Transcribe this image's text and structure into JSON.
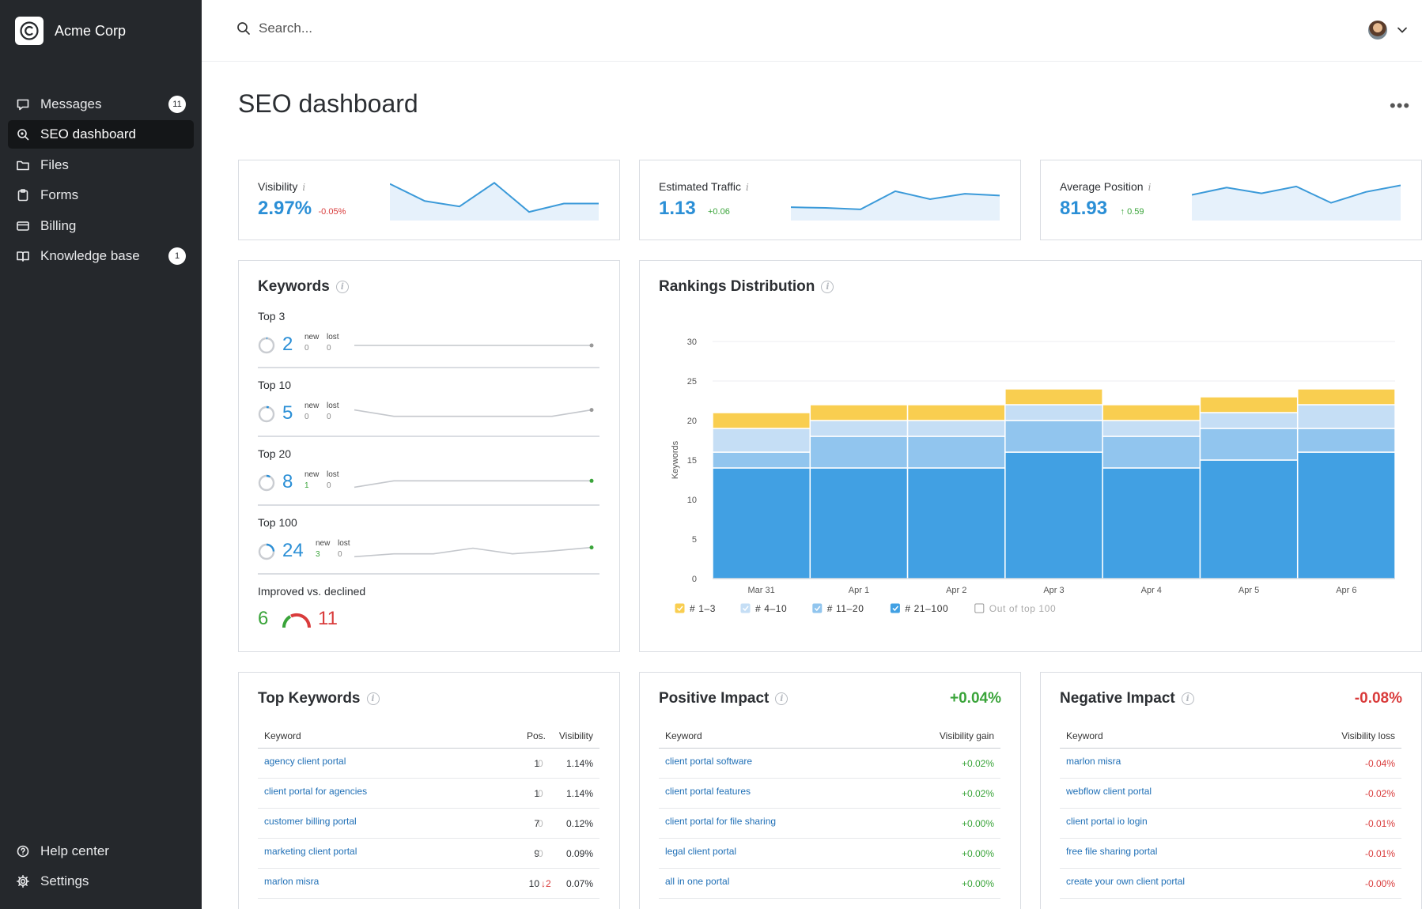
{
  "app": {
    "brand_name": "Acme Corp"
  },
  "sidebar": {
    "items": [
      {
        "label": "Messages",
        "icon": "message-icon",
        "badge": "11",
        "active": false
      },
      {
        "label": "SEO dashboard",
        "icon": "seo-search-icon",
        "badge": null,
        "active": true
      },
      {
        "label": "Files",
        "icon": "folder-icon",
        "badge": null,
        "active": false
      },
      {
        "label": "Forms",
        "icon": "clipboard-icon",
        "badge": null,
        "active": false
      },
      {
        "label": "Billing",
        "icon": "credit-card-icon",
        "badge": null,
        "active": false
      },
      {
        "label": "Knowledge base",
        "icon": "book-icon",
        "badge": "1",
        "active": false
      }
    ],
    "bottom_items": [
      {
        "label": "Help center",
        "icon": "help-icon"
      },
      {
        "label": "Settings",
        "icon": "gear-icon"
      }
    ]
  },
  "topbar": {
    "search_placeholder": "Search..."
  },
  "page": {
    "title": "SEO dashboard",
    "more_label": "•••"
  },
  "kpis": [
    {
      "label": "Visibility",
      "info": "i",
      "value": "2.97%",
      "delta": "-0.05%",
      "delta_dir": "down",
      "spark": [
        0.92,
        0.45,
        0.3,
        0.95,
        0.15,
        0.38,
        0.38
      ]
    },
    {
      "label": "Estimated Traffic",
      "info": "i",
      "value": "1.13",
      "delta": "+0.06",
      "delta_dir": "up",
      "spark": [
        0.28,
        0.26,
        0.22,
        0.72,
        0.5,
        0.65,
        0.6
      ]
    },
    {
      "label": "Average Position",
      "info": "i",
      "value": "81.93",
      "delta": "0.59",
      "delta_arrow": "↑",
      "delta_dir": "up",
      "spark": [
        0.62,
        0.82,
        0.66,
        0.85,
        0.4,
        0.7,
        0.88
      ]
    }
  ],
  "keywords": {
    "title": "Keywords",
    "new_label": "new",
    "lost_label": "lost",
    "groups": [
      {
        "label": "Top 3",
        "value": "2",
        "new": "0",
        "lost": "0",
        "ring": 0.02,
        "spark": [
          0.5,
          0.5,
          0.5,
          0.5,
          0.5,
          0.5,
          0.5
        ],
        "end_color": "#999999"
      },
      {
        "label": "Top 10",
        "value": "5",
        "new": "0",
        "lost": "0",
        "ring": 0.05,
        "spark": [
          0.8,
          0.35,
          0.35,
          0.35,
          0.35,
          0.35,
          0.8
        ],
        "end_color": "#999999"
      },
      {
        "label": "Top 20",
        "value": "8",
        "new": "1",
        "lost": "0",
        "ring": 0.08,
        "spark": [
          0.2,
          0.65,
          0.65,
          0.65,
          0.65,
          0.65,
          0.65
        ],
        "end_color": "#3aa43a"
      },
      {
        "label": "Top 100",
        "value": "24",
        "new": "3",
        "lost": "0",
        "ring": 0.24,
        "spark": [
          0.15,
          0.35,
          0.35,
          0.75,
          0.35,
          0.55,
          0.8
        ],
        "end_color": "#3aa43a"
      }
    ],
    "improved_label": "Improved vs. declined",
    "improved": "6",
    "declined": "11"
  },
  "rankings": {
    "title": "Rankings Distribution",
    "colors": {
      "top3": "#f9ce50",
      "4to10": "#c5def5",
      "11to20": "#91c5ee",
      "21to100": "#41a0e3",
      "border": "#ffffff"
    },
    "chart_data": {
      "type": "bar",
      "stacked": true,
      "title": "Rankings Distribution",
      "xlabel": "",
      "ylabel": "Keywords",
      "ylim": [
        0,
        30
      ],
      "yticks": [
        0,
        5,
        10,
        15,
        20,
        25,
        30
      ],
      "categories": [
        "Mar 31",
        "Apr 1",
        "Apr 2",
        "Apr 3",
        "Apr 4",
        "Apr 5",
        "Apr 6"
      ],
      "series": [
        {
          "name": "# 21–100",
          "values": [
            14,
            14,
            14,
            16,
            14,
            15,
            16
          ]
        },
        {
          "name": "# 11–20",
          "values": [
            2,
            4,
            4,
            4,
            4,
            4,
            3
          ]
        },
        {
          "name": "# 4–10",
          "values": [
            3,
            2,
            2,
            2,
            2,
            2,
            3
          ]
        },
        {
          "name": "# 1–3",
          "values": [
            2,
            2,
            2,
            2,
            2,
            2,
            2
          ]
        }
      ],
      "legend": [
        {
          "label": "# 1–3",
          "checked": true
        },
        {
          "label": "# 4–10",
          "checked": true
        },
        {
          "label": "# 11–20",
          "checked": true
        },
        {
          "label": "# 21–100",
          "checked": true
        },
        {
          "label": "Out of top 100",
          "checked": false
        }
      ]
    }
  },
  "top_keywords": {
    "title": "Top Keywords",
    "col_keyword": "Keyword",
    "col_pos": "Pos.",
    "col_visibility": "Visibility",
    "rows": [
      {
        "keyword": "agency client portal",
        "pos": "1",
        "change": "0",
        "change_dir": "none",
        "visibility": "1.14%"
      },
      {
        "keyword": "client portal for agencies",
        "pos": "1",
        "change": "0",
        "change_dir": "none",
        "visibility": "1.14%"
      },
      {
        "keyword": "customer billing portal",
        "pos": "7",
        "change": "0",
        "change_dir": "none",
        "visibility": "0.12%"
      },
      {
        "keyword": "marketing client portal",
        "pos": "9",
        "change": "0",
        "change_dir": "none",
        "visibility": "0.09%"
      },
      {
        "keyword": "marlon misra",
        "pos": "10",
        "change": "↓2",
        "change_dir": "down",
        "visibility": "0.07%"
      }
    ]
  },
  "positive_impact": {
    "title": "Positive Impact",
    "total": "+0.04%",
    "col_keyword": "Keyword",
    "col_value": "Visibility gain",
    "rows": [
      {
        "keyword": "client portal software",
        "value": "+0.02%"
      },
      {
        "keyword": "client portal features",
        "value": "+0.02%"
      },
      {
        "keyword": "client portal for file sharing",
        "value": "+0.00%"
      },
      {
        "keyword": "legal client portal",
        "value": "+0.00%"
      },
      {
        "keyword": "all in one portal",
        "value": "+0.00%"
      }
    ]
  },
  "negative_impact": {
    "title": "Negative Impact",
    "total": "-0.08%",
    "col_keyword": "Keyword",
    "col_value": "Visibility loss",
    "rows": [
      {
        "keyword": "marlon misra",
        "value": "-0.04%"
      },
      {
        "keyword": "webflow client portal",
        "value": "-0.02%"
      },
      {
        "keyword": "client portal io login",
        "value": "-0.01%"
      },
      {
        "keyword": "free file sharing portal",
        "value": "-0.01%"
      },
      {
        "keyword": "create your own client portal",
        "value": "-0.00%"
      }
    ]
  }
}
